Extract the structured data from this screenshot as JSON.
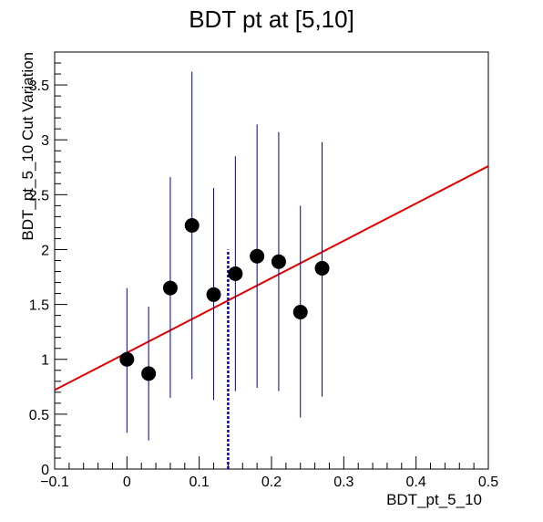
{
  "chart_data": {
    "type": "scatter",
    "title": "BDT pt at [5,10]",
    "xlabel": "BDT_pt_5_10",
    "ylabel": "BDT_pt_5_10 Cut Variation",
    "xlim": [
      -0.1,
      0.5
    ],
    "ylim": [
      0,
      3.8
    ],
    "x_ticks": [
      -0.1,
      0,
      0.1,
      0.2,
      0.3,
      0.4,
      0.5
    ],
    "x_tick_labels": [
      "−0.1",
      "0",
      "0.1",
      "0.2",
      "0.3",
      "0.4",
      "0.5"
    ],
    "y_ticks": [
      0,
      0.5,
      1,
      1.5,
      2,
      2.5,
      3,
      3.5
    ],
    "y_tick_labels": [
      "0",
      "0.5",
      "1",
      "1.5",
      "2",
      "2.5",
      "3",
      "3.5"
    ],
    "grid": false,
    "colors": {
      "points": "#000000",
      "error_bars": "#00008b",
      "fit_line": "#e00000",
      "cut_marker": "#0000cc"
    },
    "points": [
      {
        "x": 0.0,
        "y": 1.0,
        "y_low": 0.33,
        "y_high": 1.65
      },
      {
        "x": 0.03,
        "y": 0.87,
        "y_low": 0.26,
        "y_high": 1.48
      },
      {
        "x": 0.06,
        "y": 1.65,
        "y_low": 0.65,
        "y_high": 2.66
      },
      {
        "x": 0.09,
        "y": 2.22,
        "y_low": 0.82,
        "y_high": 3.62
      },
      {
        "x": 0.12,
        "y": 1.59,
        "y_low": 0.63,
        "y_high": 2.56
      },
      {
        "x": 0.15,
        "y": 1.78,
        "y_low": 0.71,
        "y_high": 2.85
      },
      {
        "x": 0.18,
        "y": 1.94,
        "y_low": 0.74,
        "y_high": 3.14
      },
      {
        "x": 0.21,
        "y": 1.89,
        "y_low": 0.71,
        "y_high": 3.07
      },
      {
        "x": 0.24,
        "y": 1.43,
        "y_low": 0.47,
        "y_high": 2.4
      },
      {
        "x": 0.27,
        "y": 1.83,
        "y_low": 0.66,
        "y_high": 2.98
      }
    ],
    "fit_line": {
      "x": [
        -0.1,
        0.5
      ],
      "y": [
        0.72,
        2.76
      ]
    },
    "cut_marker": {
      "x": 0.14,
      "y_min": 0,
      "y_max": 2.0
    }
  }
}
